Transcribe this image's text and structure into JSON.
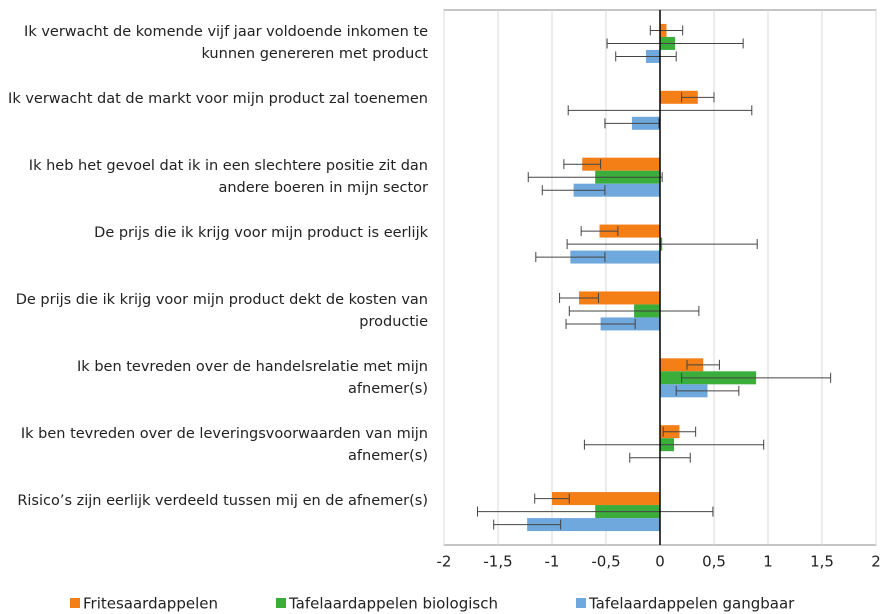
{
  "chart_data": {
    "type": "bar",
    "orientation": "horizontal",
    "categories": [
      "Ik verwacht de komende vijf jaar voldoende inkomen te kunnen genereren met product",
      "Ik verwacht dat de markt voor mijn product zal toenemen",
      "Ik heb het gevoel dat ik in een slechtere positie zit dan andere boeren in mijn sector",
      "De prijs die ik krijg voor mijn product is eerlijk",
      "De prijs die ik krijg voor mijn product dekt de kosten van productie",
      "Ik ben tevreden over de handelsrelatie met mijn afnemer(s)",
      "Ik ben tevreden over de leveringsvoorwaarden van mijn afnemer(s)",
      "Risico’s zijn eerlijk verdeeld tussen mij en de afnemer(s)"
    ],
    "series": [
      {
        "name": "Fritesaardappelen",
        "color": "#f47f17",
        "values": [
          0.06,
          0.35,
          -0.72,
          -0.56,
          -0.75,
          0.4,
          0.18,
          -1.0
        ],
        "errors": [
          0.15,
          0.15,
          0.17,
          0.17,
          0.18,
          0.15,
          0.15,
          0.16
        ]
      },
      {
        "name": "Tafelaardappelen biologisch",
        "color": "#3aad3a",
        "values": [
          0.14,
          0.0,
          -0.6,
          0.02,
          -0.24,
          0.89,
          0.13,
          -0.6
        ],
        "errors": [
          0.63,
          0.85,
          0.62,
          0.88,
          0.6,
          0.69,
          0.83,
          1.09
        ]
      },
      {
        "name": "Tafelaardappelen gangbaar",
        "color": "#6fa8dc",
        "values": [
          -0.13,
          -0.26,
          -0.8,
          -0.83,
          -0.55,
          0.44,
          0.0,
          -1.23
        ],
        "errors": [
          0.28,
          0.25,
          0.29,
          0.32,
          0.32,
          0.29,
          0.28,
          0.31
        ]
      }
    ],
    "xlim": [
      -2,
      2
    ],
    "xticks": [
      -2,
      {
        "value": -1.5,
        "label": "-1,5"
      },
      -1,
      {
        "value": -0.5,
        "label": "-0,5"
      },
      0,
      {
        "value": 0.5,
        "label": "0,5"
      },
      1,
      {
        "value": 1.5,
        "label": "1,5"
      },
      2
    ],
    "grid": true,
    "legend": "bottom"
  }
}
